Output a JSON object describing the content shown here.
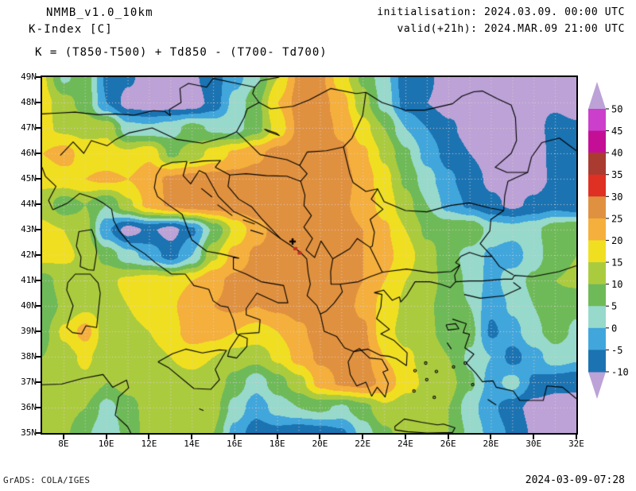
{
  "header": {
    "model": "NMMB_v1.0_10km",
    "product": "K-Index [C]",
    "formula": "K = (T850-T500) + Td850 - (T700- Td700)",
    "init_line": "initialisation: 2024.03.09. 00:00 UTC",
    "valid_line": "valid(+21h): 2024.MAR.09 21:00 UTC"
  },
  "footer": {
    "credit": "GrADS: COLA/IGES",
    "timestamp": "2024-03-09-07:28"
  },
  "colorbar": {
    "labels": [
      "50",
      "45",
      "40",
      "35",
      "30",
      "25",
      "20",
      "15",
      "10",
      "5",
      "0",
      "-5",
      "-10"
    ],
    "segment_colors_top_to_bottom": [
      "#CC3FCC",
      "#C40E96",
      "#A93B30",
      "#DE3023",
      "#E0913F",
      "#F5AF3D",
      "#F0DF21",
      "#ABCB3F",
      "#6FBA58",
      "#97D9CB",
      "#41A6DB",
      "#1B73B2"
    ],
    "arrow_color": "#BCA2D6"
  },
  "chart_data": {
    "type": "heatmap",
    "title": "K-Index [C]",
    "x_tick_labels": [
      "8E",
      "10E",
      "12E",
      "14E",
      "16E",
      "18E",
      "20E",
      "22E",
      "24E",
      "26E",
      "28E",
      "30E",
      "32E"
    ],
    "x_tick_lons": [
      8,
      10,
      12,
      14,
      16,
      18,
      20,
      22,
      24,
      26,
      28,
      30,
      32
    ],
    "y_tick_labels": [
      "49N",
      "48N",
      "47N",
      "46N",
      "45N",
      "44N",
      "43N",
      "42N",
      "41N",
      "40N",
      "39N",
      "38N",
      "37N",
      "36N",
      "35N"
    ],
    "y_tick_lats": [
      49,
      48,
      47,
      46,
      45,
      44,
      43,
      42,
      41,
      40,
      39,
      38,
      37,
      36,
      35
    ],
    "lon_range": [
      7,
      32
    ],
    "lat_range": [
      35,
      49
    ],
    "grid_lines": {
      "lon_step": 1,
      "lat_step": 1,
      "style": "dotted"
    },
    "levels": [
      -10,
      -5,
      0,
      5,
      10,
      15,
      20,
      25,
      30,
      35,
      40,
      45,
      50
    ],
    "palette": {
      "band_colors": [
        "#BCA2D6",
        "#1B73B2",
        "#41A6DB",
        "#97D9CB",
        "#6FBA58",
        "#ABCB3F",
        "#F0DF21",
        "#F5AF3D",
        "#E0913F",
        "#DE3023",
        "#A93B30",
        "#C40E96",
        "#CC3FCC",
        "#BCA2D6"
      ]
    },
    "grid": {
      "lons": [
        7,
        8,
        9,
        10,
        11,
        12,
        13,
        14,
        15,
        16,
        17,
        18,
        19,
        20,
        21,
        22,
        23,
        24,
        25,
        26,
        27,
        28,
        29,
        30,
        31,
        32
      ],
      "lats": [
        49,
        48,
        47,
        46,
        45,
        44,
        43,
        42,
        41,
        40,
        39,
        38,
        37,
        36,
        35
      ],
      "values": [
        [
          16,
          4,
          8,
          -6,
          -9,
          -13,
          -13,
          -11,
          -7,
          -2,
          4,
          15,
          26,
          26,
          17,
          9,
          2,
          -8,
          -9,
          -13,
          -13,
          -13,
          -13,
          -12,
          -12,
          -13
        ],
        [
          17,
          12,
          8,
          -5,
          -12,
          -13,
          -13,
          -13,
          -8,
          2,
          8,
          20,
          27,
          27,
          22,
          12,
          3,
          -7,
          -10,
          -12,
          -11,
          -13,
          -13,
          -11,
          -11,
          -13
        ],
        [
          16,
          14,
          13,
          14,
          2,
          1,
          3,
          7,
          4,
          3,
          8,
          17,
          26,
          27,
          24,
          17,
          10,
          0,
          -5,
          -9,
          -12,
          -13,
          -13,
          -12,
          -8,
          -9
        ],
        [
          20,
          22,
          18,
          17,
          16,
          19,
          9,
          12,
          17,
          21,
          24,
          27,
          28,
          28,
          26,
          21,
          14,
          6,
          -2,
          -7,
          -10,
          -12,
          -13,
          -13,
          -8,
          -5
        ],
        [
          16,
          18,
          20,
          21,
          20,
          23,
          26,
          27,
          27,
          27,
          27,
          28,
          28,
          28,
          27,
          23,
          17,
          9,
          2,
          -4,
          -8,
          -11,
          -12,
          -12,
          -9,
          -7
        ],
        [
          13,
          7,
          10,
          5,
          14,
          22,
          26,
          28,
          28,
          28,
          28,
          28,
          28,
          27,
          26,
          23,
          18,
          12,
          5,
          -2,
          -6,
          -9,
          -11,
          -9,
          -7,
          -9
        ],
        [
          16,
          15,
          12,
          -4,
          -12,
          -9,
          -12,
          -6,
          6,
          16,
          23,
          27,
          28,
          28,
          27,
          25,
          21,
          15,
          9,
          9,
          10,
          3,
          2,
          4,
          8,
          10
        ],
        [
          17,
          16,
          14,
          8,
          2,
          -2,
          -7,
          0,
          14,
          22,
          26,
          27,
          27,
          27,
          26,
          25,
          22,
          17,
          12,
          7,
          3,
          -1,
          -3,
          3,
          8,
          10
        ],
        [
          8,
          12,
          15,
          14,
          16,
          18,
          17,
          20,
          24,
          26,
          27,
          27,
          28,
          28,
          27,
          25,
          20,
          15,
          12,
          8,
          4,
          -2,
          3,
          6,
          10,
          11
        ],
        [
          6,
          11,
          14,
          13,
          15,
          17,
          19,
          24,
          25,
          26,
          25,
          26,
          27,
          28,
          27,
          24,
          18,
          14,
          11,
          7,
          5,
          -4,
          1,
          5,
          8,
          6
        ],
        [
          8,
          16,
          22,
          12,
          14,
          15,
          17,
          24,
          22,
          20,
          18,
          20,
          24,
          27,
          28,
          26,
          17,
          13,
          11,
          8,
          7,
          -6,
          -2,
          4,
          7,
          4
        ],
        [
          10,
          13,
          16,
          12,
          13,
          14,
          15,
          16,
          15,
          13,
          12,
          16,
          22,
          26,
          27,
          27,
          20,
          16,
          13,
          10,
          4,
          0,
          -7,
          -2,
          3,
          1
        ],
        [
          12,
          13,
          14,
          10,
          12,
          13,
          14,
          14,
          13,
          8,
          2,
          8,
          13,
          22,
          26,
          27,
          24,
          17,
          14,
          12,
          6,
          -2,
          2,
          -6,
          -8,
          -9
        ],
        [
          13,
          12,
          10,
          3,
          8,
          12,
          13,
          13,
          12,
          3,
          -3,
          2,
          5,
          6,
          4,
          8,
          14,
          12,
          13,
          10,
          2,
          -4,
          -8,
          -12,
          -13,
          -12
        ],
        [
          13,
          11,
          6,
          1,
          7,
          12,
          12,
          13,
          10,
          -2,
          -8,
          -7,
          -9,
          -8,
          -6,
          2,
          9,
          12,
          12,
          10,
          4,
          -2,
          -6,
          -11,
          -13,
          -13
        ]
      ]
    },
    "markers": [
      {
        "type": "cross",
        "color": "#000000",
        "lon": 18.72,
        "lat": 42.53
      },
      {
        "type": "square",
        "color": "#C03028",
        "lon": 18.85,
        "lat": 42.25
      },
      {
        "type": "square",
        "color": "#C03028",
        "lon": 19.05,
        "lat": 42.08
      }
    ]
  }
}
